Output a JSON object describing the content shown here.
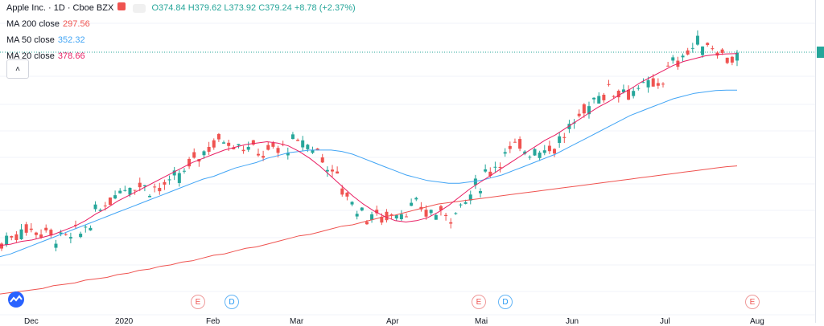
{
  "header": {
    "symbol": "Apple Inc. · 1D · Cboe BZX",
    "ohlc": "O374.84  H379.62  L373.92  C379.24  +8.78 (+2.37%)"
  },
  "indicators": [
    {
      "label": "MA 200 close",
      "value": "297.56"
    },
    {
      "label": "MA 50 close",
      "value": "352.32"
    },
    {
      "label": "MA 20 close",
      "value": "378.66"
    }
  ],
  "markers": [
    {
      "type": "E"
    },
    {
      "type": "D"
    },
    {
      "type": "E"
    },
    {
      "type": "D"
    },
    {
      "type": "E"
    }
  ],
  "time_axis": [
    "Dec",
    "2020",
    "Feb",
    "Mar",
    "Apr",
    "Mai",
    "Jun",
    "Jul",
    "Aug"
  ],
  "colors": {
    "up": "#26a69a",
    "down": "#ef5350",
    "ma200": "#ef5350",
    "ma50": "#42a5f5",
    "ma20": "#e91e63"
  },
  "chart_data": {
    "type": "candlestick",
    "series": [
      {
        "name": "MA 200 close",
        "values": [
          205,
          206,
          207,
          208,
          209,
          211,
          212,
          213,
          215,
          216,
          217,
          219,
          220,
          222,
          223,
          225,
          226,
          228,
          229,
          231,
          233,
          234,
          236,
          238,
          239,
          241,
          243,
          245,
          247,
          248,
          250,
          252,
          254,
          255,
          257,
          259,
          261,
          262,
          264,
          266,
          268,
          270,
          271,
          272,
          273,
          274,
          275,
          276,
          277,
          278,
          279,
          280,
          281,
          282,
          283,
          284,
          285,
          286,
          287,
          288,
          289,
          290,
          291,
          292,
          293,
          294,
          295,
          296,
          297,
          297.56
        ]
      },
      {
        "name": "MA 50 close",
        "values": [
          232,
          234,
          237,
          240,
          243,
          246,
          249,
          252,
          255,
          258,
          261,
          264,
          267,
          270,
          273,
          276,
          279,
          282,
          285,
          288,
          290,
          293,
          296,
          298,
          300,
          303,
          305,
          307,
          308,
          309,
          309,
          309,
          308,
          306,
          303,
          300,
          297,
          294,
          291,
          289,
          287,
          286,
          285,
          285,
          286,
          287,
          289,
          291,
          294,
          297,
          300,
          303,
          306,
          310,
          314,
          318,
          322,
          326,
          330,
          334,
          337,
          340,
          343,
          346,
          348,
          350,
          351,
          352,
          352.3,
          352.32
        ]
      },
      {
        "name": "MA 20 close",
        "values": [
          240,
          241,
          243,
          244,
          246,
          248,
          251,
          254,
          258,
          263,
          267,
          272,
          276,
          280,
          284,
          288,
          292,
          296,
          300,
          303,
          306,
          309,
          311,
          313,
          314,
          315,
          314,
          312,
          308,
          303,
          297,
          290,
          283,
          276,
          270,
          265,
          261,
          258,
          257,
          258,
          260,
          264,
          269,
          275,
          281,
          286,
          291,
          296,
          301,
          306,
          311,
          316,
          320,
          325,
          330,
          335,
          340,
          344,
          349,
          353,
          358,
          362,
          366,
          370,
          373,
          375,
          377,
          378,
          378.5,
          378.66
        ]
      }
    ]
  }
}
